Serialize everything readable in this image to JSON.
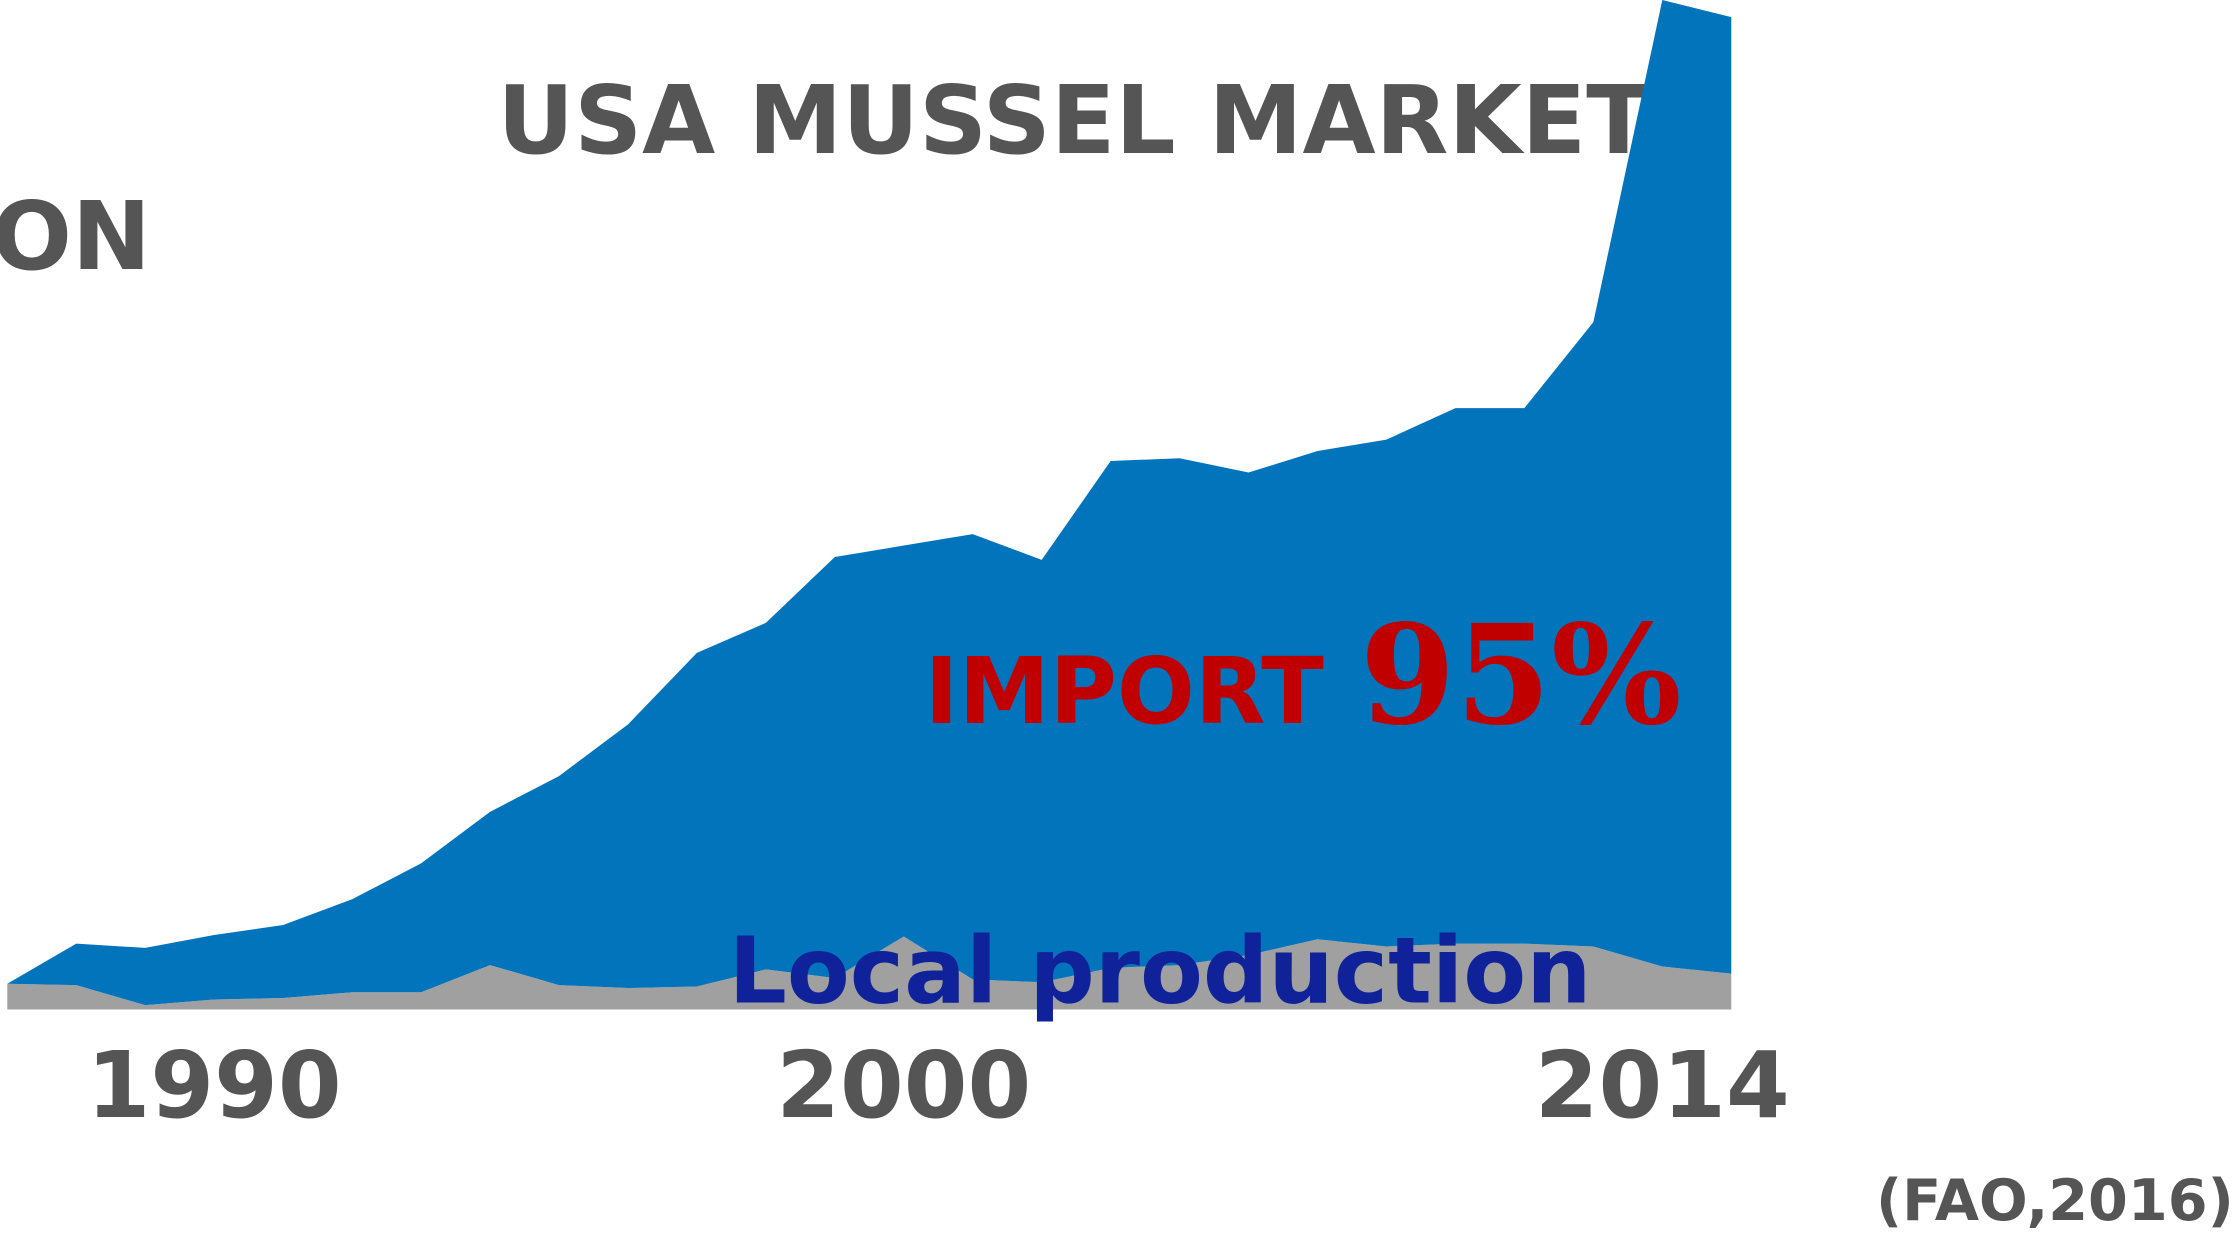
{
  "chart_data": {
    "type": "stacked_area",
    "title": "USA MUSSEL MARKET",
    "annotations": [
      "ON",
      "95%",
      "(FAO,2016)"
    ],
    "categories": [
      null,
      null,
      null,
      "1990",
      null,
      null,
      null,
      null,
      null,
      null,
      null,
      null,
      null,
      "2000",
      null,
      null,
      null,
      null,
      null,
      null,
      null,
      null,
      null,
      null,
      "2014",
      null
    ],
    "series": [
      {
        "name": "Local production",
        "color": "#a0a0a0",
        "values": [
          18,
          17,
          3,
          7,
          8,
          12,
          12,
          31,
          17,
          15,
          16,
          28,
          22,
          51,
          21,
          19,
          29,
          31,
          38,
          49,
          44,
          46,
          46,
          44,
          30,
          25
        ]
      },
      {
        "name": "IMPORT",
        "color": "#0174bc",
        "values": [
          0,
          29,
          40,
          45,
          51,
          65,
          90,
          107,
          146,
          184,
          233,
          242,
          294,
          273,
          311,
          295,
          354,
          354,
          337,
          341,
          354,
          374,
          374,
          436,
          675,
          668
        ]
      }
    ],
    "ylim": [
      0,
      705
    ]
  }
}
